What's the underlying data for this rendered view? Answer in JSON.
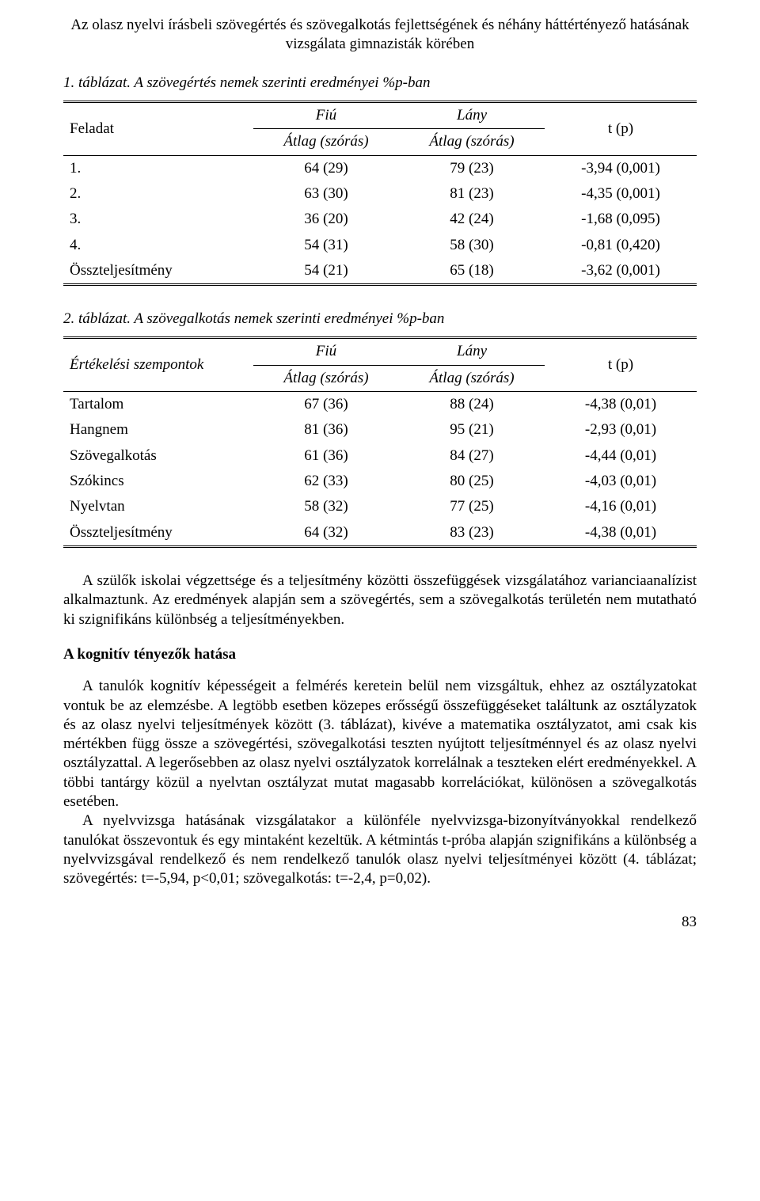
{
  "running_title_line1": "Az olasz nyelvi írásbeli szövegértés és szövegalkotás fejlettségének és néhány háttértényező hatásának",
  "running_title_line2": "vizsgálata gimnazisták körében",
  "table1": {
    "caption": "1. táblázat. A szövegértés nemek szerinti eredményei %p-ban",
    "head": {
      "col1": "Feladat",
      "col2_top": "Fiú",
      "col2_bot": "Átlag (szórás)",
      "col3_top": "Lány",
      "col3_bot": "Átlag (szórás)",
      "col4": "t (p)"
    },
    "rows": [
      {
        "label": "1.",
        "fiu": "64 (29)",
        "lany": "79 (23)",
        "t": "-3,94 (0,001)"
      },
      {
        "label": "2.",
        "fiu": "63 (30)",
        "lany": "81 (23)",
        "t": "-4,35 (0,001)"
      },
      {
        "label": "3.",
        "fiu": "36 (20)",
        "lany": "42 (24)",
        "t": "-1,68 (0,095)"
      },
      {
        "label": "4.",
        "fiu": "54 (31)",
        "lany": "58 (30)",
        "t": "-0,81 (0,420)"
      },
      {
        "label": "Összteljesítmény",
        "fiu": "54 (21)",
        "lany": "65 (18)",
        "t": "-3,62 (0,001)"
      }
    ],
    "col_widths": [
      "30%",
      "23%",
      "23%",
      "24%"
    ],
    "fontsize": 19
  },
  "table2": {
    "caption": "2. táblázat. A szövegalkotás nemek szerinti eredményei %p-ban",
    "head": {
      "col1": "Értékelési szempontok",
      "col2_top": "Fiú",
      "col2_bot": "Átlag (szórás)",
      "col3_top": "Lány",
      "col3_bot": "Átlag (szórás)",
      "col4": "t (p)"
    },
    "rows": [
      {
        "label": "Tartalom",
        "fiu": "67 (36)",
        "lany": "88 (24)",
        "t": "-4,38 (0,01)"
      },
      {
        "label": "Hangnem",
        "fiu": "81 (36)",
        "lany": "95 (21)",
        "t": "-2,93 (0,01)"
      },
      {
        "label": "Szövegalkotás",
        "fiu": "61 (36)",
        "lany": "84 (27)",
        "t": "-4,44 (0,01)"
      },
      {
        "label": "Szókincs",
        "fiu": "62 (33)",
        "lany": "80 (25)",
        "t": "-4,03 (0,01)"
      },
      {
        "label": "Nyelvtan",
        "fiu": "58 (32)",
        "lany": "77 (25)",
        "t": "-4,16 (0,01)"
      },
      {
        "label": "Összteljesítmény",
        "fiu": "64 (32)",
        "lany": "83 (23)",
        "t": "-4,38 (0,01)"
      }
    ],
    "col_widths": [
      "30%",
      "23%",
      "23%",
      "24%"
    ],
    "fontsize": 19
  },
  "para1": "A szülők iskolai végzettsége és a teljesítmény közötti összefüggések vizsgálatához varianciaanalízist alkalmaztunk. Az eredmények alapján sem a szövegértés, sem a szövegalkotás területén nem mutatható ki szignifikáns különbség a teljesítményekben.",
  "section_heading": "A kognitív tényezők hatása",
  "para2": "A tanulók kognitív képességeit a felmérés keretein belül nem vizsgáltuk, ehhez az osztályzatokat vontuk be az elemzésbe. A legtöbb esetben közepes erősségű összefüggéseket találtunk az osztályzatok és az olasz nyelvi teljesítmények között (3. táblázat), kivéve a matematika osztályzatot, ami csak kis mértékben függ össze a szövegértési, szövegalkotási teszten nyújtott teljesítménnyel és az olasz nyelvi osztályzattal. A legerősebben az olasz nyelvi osztályzatok korrelálnak a teszteken elért eredményekkel. A többi tantárgy közül a nyelvtan osztályzat mutat magasabb korrelációkat, különösen a szövegalkotás esetében.",
  "para3": "A nyelvvizsga hatásának vizsgálatakor a különféle nyelvvizsga-bizonyítványokkal rendelkező tanulókat összevontuk és egy mintaként kezeltük. A kétmintás t-próba alapján szignifikáns a különbség a nyelvvizsgával rendelkező és nem rendelkező tanulók olasz nyelvi teljesítményei között (4. táblázat; szövegértés: t=-5,94, p<0,01; szövegalkotás: t=-2,4, p=0,02).",
  "page_number": "83",
  "colors": {
    "text": "#000000",
    "background": "#ffffff",
    "rule": "#000000"
  }
}
